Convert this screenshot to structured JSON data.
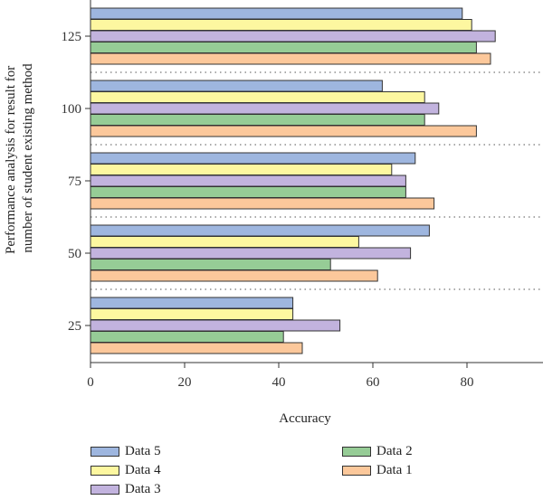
{
  "chart_data": {
    "type": "bar",
    "orientation": "horizontal",
    "categories": [
      "25",
      "50",
      "75",
      "100",
      "125"
    ],
    "series": [
      {
        "name": "Data 1",
        "color": "#fcc89b",
        "values": [
          45,
          61,
          73,
          82,
          85
        ]
      },
      {
        "name": "Data 2",
        "color": "#96cc96",
        "values": [
          41,
          51,
          67,
          71,
          82
        ]
      },
      {
        "name": "Data 3",
        "color": "#c2b3de",
        "values": [
          53,
          68,
          67,
          74,
          86
        ]
      },
      {
        "name": "Data 4",
        "color": "#fdf7a0",
        "values": [
          43,
          57,
          64,
          71,
          81
        ]
      },
      {
        "name": "Data 5",
        "color": "#9eb6df",
        "values": [
          43,
          72,
          69,
          62,
          79
        ]
      }
    ],
    "xlabel": "Accuracy",
    "ylabel_lines": [
      "Performance analysis for result for",
      "number of student existing method"
    ],
    "xlim": [
      0,
      95
    ],
    "xticks": [
      "0",
      "20",
      "40",
      "60",
      "80"
    ],
    "grid": "dotted separators between categories",
    "legend_position": "bottom",
    "legend_order": [
      "Data 5",
      "Data 4",
      "Data 3",
      "Data 2",
      "Data 1"
    ]
  }
}
